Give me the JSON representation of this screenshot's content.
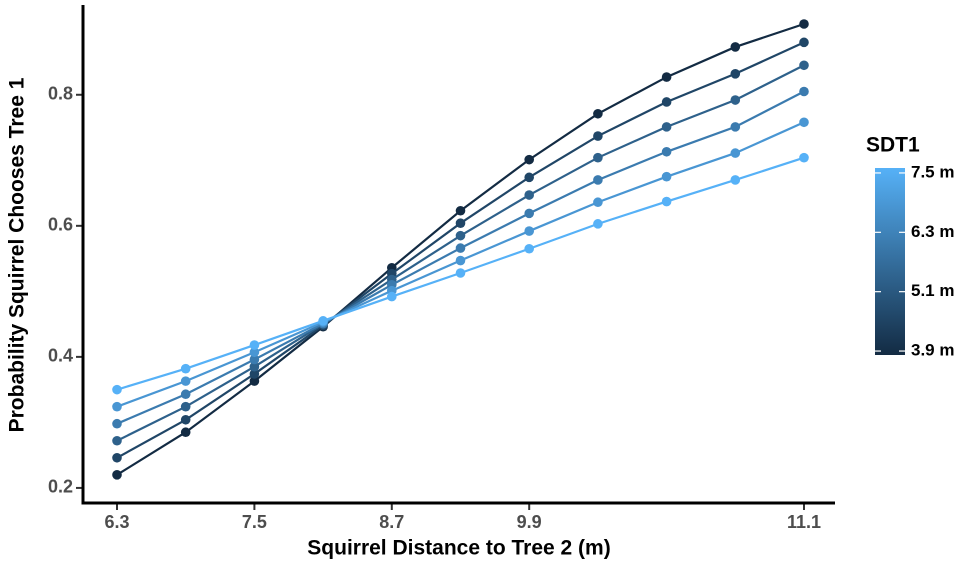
{
  "chart_data": {
    "type": "line",
    "x_label": "Squirrel Distance to Tree 2 (m)",
    "y_label": "Probability Squirrel Chooses Tree 1",
    "categories": [
      "6.3",
      null,
      "7.5",
      null,
      "8.7",
      null,
      "9.9",
      null,
      null,
      null,
      "11.1"
    ],
    "ylim": [
      0.177,
      0.937
    ],
    "yticks": [
      0.2,
      0.4,
      0.6,
      0.8
    ],
    "series": [
      {
        "color": "#132B43",
        "values": [
          0.22,
          0.285,
          0.363,
          0.446,
          0.536,
          0.623,
          0.701,
          0.771,
          0.827,
          0.873,
          0.908
        ]
      },
      {
        "color": "#204667",
        "values": [
          0.246,
          0.304,
          0.374,
          0.448,
          0.527,
          0.604,
          0.674,
          0.737,
          0.789,
          0.832,
          0.88
        ]
      },
      {
        "color": "#2E618B",
        "values": [
          0.272,
          0.324,
          0.385,
          0.45,
          0.518,
          0.585,
          0.647,
          0.704,
          0.751,
          0.792,
          0.845
        ]
      },
      {
        "color": "#3B7BAF",
        "values": [
          0.298,
          0.343,
          0.396,
          0.451,
          0.51,
          0.566,
          0.619,
          0.67,
          0.713,
          0.751,
          0.805
        ]
      },
      {
        "color": "#4996D3",
        "values": [
          0.324,
          0.363,
          0.407,
          0.453,
          0.501,
          0.547,
          0.592,
          0.636,
          0.675,
          0.711,
          0.758
        ]
      },
      {
        "color": "#56B1F7",
        "values": [
          0.35,
          0.382,
          0.418,
          0.455,
          0.492,
          0.528,
          0.565,
          0.603,
          0.637,
          0.67,
          0.704
        ]
      }
    ],
    "colorbar": {
      "title": "SDT1",
      "colors": [
        "#132B43",
        "#56B1F7"
      ],
      "lim": [
        3.82,
        7.6
      ],
      "ticks": [
        {
          "value": 3.9,
          "label": "3.9 m"
        },
        {
          "value": 5.1,
          "label": "5.1 m"
        },
        {
          "value": 6.3,
          "label": "6.3 m"
        },
        {
          "value": 7.5,
          "label": "7.5 m"
        }
      ]
    }
  }
}
